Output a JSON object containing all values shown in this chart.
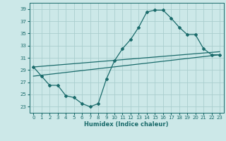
{
  "xlabel": "Humidex (Indice chaleur)",
  "bg_color": "#cce8e8",
  "grid_color": "#aacece",
  "line_color": "#1a6b6b",
  "xlim": [
    -0.5,
    23.5
  ],
  "ylim": [
    22,
    40
  ],
  "yticks": [
    23,
    25,
    27,
    29,
    31,
    33,
    35,
    37,
    39
  ],
  "xticks": [
    0,
    1,
    2,
    3,
    4,
    5,
    6,
    7,
    8,
    9,
    10,
    11,
    12,
    13,
    14,
    15,
    16,
    17,
    18,
    19,
    20,
    21,
    22,
    23
  ],
  "curve_x": [
    0,
    1,
    2,
    3,
    4,
    5,
    6,
    7,
    8,
    9,
    10,
    11,
    12,
    13,
    14,
    15,
    16,
    17,
    18,
    19,
    20,
    21,
    22,
    23
  ],
  "curve_y": [
    29.5,
    28.0,
    26.5,
    26.5,
    24.8,
    24.5,
    23.5,
    23.0,
    23.5,
    27.5,
    30.5,
    32.5,
    34.0,
    36.0,
    38.5,
    38.8,
    38.8,
    37.5,
    36.0,
    34.8,
    34.8,
    32.5,
    31.5,
    31.5
  ],
  "line1_x": [
    0,
    23
  ],
  "line1_y": [
    29.5,
    32.0
  ],
  "line2_x": [
    0,
    23
  ],
  "line2_y": [
    28.0,
    31.5
  ]
}
